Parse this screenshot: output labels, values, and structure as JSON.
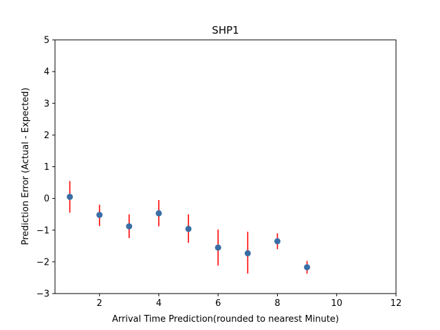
{
  "chart_data": {
    "type": "scatter",
    "title": "SHP1",
    "xlabel": "Arrival Time Prediction(rounded to nearest Minute)",
    "ylabel": "Prediction Error (Actual - Expected)",
    "xlim": [
      0.5,
      12
    ],
    "ylim": [
      -3,
      5
    ],
    "xticks": [
      2,
      4,
      6,
      8,
      10,
      12
    ],
    "yticks": [
      -3,
      -2,
      -1,
      0,
      1,
      2,
      3,
      4,
      5
    ],
    "grid": false,
    "marker_color": "#3a6ea5",
    "errorbar_color": "#ff0000",
    "points": [
      {
        "x": 1,
        "y": 0.05,
        "err_low": -0.45,
        "err_high": 0.55
      },
      {
        "x": 2,
        "y": -0.52,
        "err_low": -0.87,
        "err_high": -0.2
      },
      {
        "x": 3,
        "y": -0.88,
        "err_low": -1.25,
        "err_high": -0.5
      },
      {
        "x": 4,
        "y": -0.47,
        "err_low": -0.88,
        "err_high": -0.05
      },
      {
        "x": 5,
        "y": -0.96,
        "err_low": -1.4,
        "err_high": -0.5
      },
      {
        "x": 6,
        "y": -1.55,
        "err_low": -2.12,
        "err_high": -0.98
      },
      {
        "x": 7,
        "y": -1.73,
        "err_low": -2.37,
        "err_high": -1.05
      },
      {
        "x": 8,
        "y": -1.35,
        "err_low": -1.6,
        "err_high": -1.1
      },
      {
        "x": 9,
        "y": -2.17,
        "err_low": -2.37,
        "err_high": -1.97
      }
    ]
  }
}
